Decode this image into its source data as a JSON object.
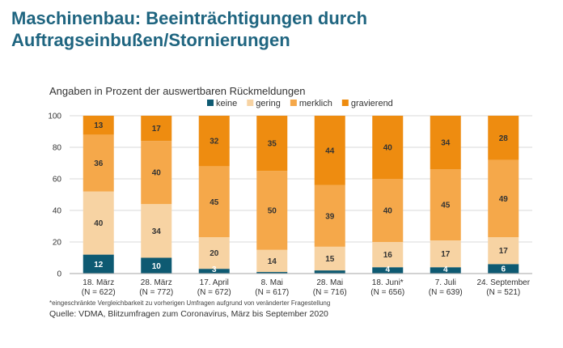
{
  "title": "Maschinenbau: Beeinträchtigungen durch Auftragseinbußen/Stornierungen",
  "subtitle": "Angaben in Prozent der auswertbaren Rückmeldungen",
  "footnote": "*eingeschränkte Vergleichbarkeit zu vorherigen Umfragen aufgrund von veränderter Fragestellung",
  "source": "Quelle: VDMA, Blitzumfragen zum Coronavirus, März bis September 2020",
  "colors": {
    "keine": "#0e5a72",
    "gering": "#f7d3a3",
    "merklich": "#f5a84a",
    "gravierend": "#ee8c10",
    "grid": "#d9d9d9",
    "axis": "#a6a6a6"
  },
  "chart_data": {
    "type": "bar",
    "stacked": true,
    "categories": [
      [
        "18. März",
        "(N = 622)"
      ],
      [
        "28. März",
        "(N = 772)"
      ],
      [
        "17. April",
        "(N = 672)"
      ],
      [
        "8. Mai",
        "(N = 617)"
      ],
      [
        "28. Mai",
        "(N = 716)"
      ],
      [
        "18. Juni*",
        "(N = 656)"
      ],
      [
        "7. Juli",
        "(N = 639)"
      ],
      [
        "24. September",
        "(N = 521)"
      ]
    ],
    "series": [
      {
        "name": "keine",
        "values": [
          12,
          10,
          3,
          1,
          2,
          4,
          4,
          6
        ]
      },
      {
        "name": "gering",
        "values": [
          40,
          34,
          20,
          14,
          15,
          16,
          17,
          17
        ]
      },
      {
        "name": "merklich",
        "values": [
          36,
          40,
          45,
          50,
          39,
          40,
          45,
          49
        ]
      },
      {
        "name": "gravierend",
        "values": [
          13,
          17,
          32,
          35,
          44,
          40,
          34,
          28
        ]
      }
    ],
    "labels": [
      [
        12,
        40,
        36,
        13
      ],
      [
        10,
        34,
        40,
        17
      ],
      [
        3,
        20,
        45,
        32
      ],
      [
        "",
        14,
        50,
        35
      ],
      [
        "",
        15,
        39,
        44
      ],
      [
        4,
        16,
        40,
        40
      ],
      [
        4,
        17,
        45,
        34
      ],
      [
        6,
        17,
        49,
        28
      ]
    ],
    "ylim": [
      0,
      100
    ],
    "yticks": [
      0,
      20,
      40,
      60,
      80,
      100
    ],
    "grid": true,
    "legend": "top"
  }
}
